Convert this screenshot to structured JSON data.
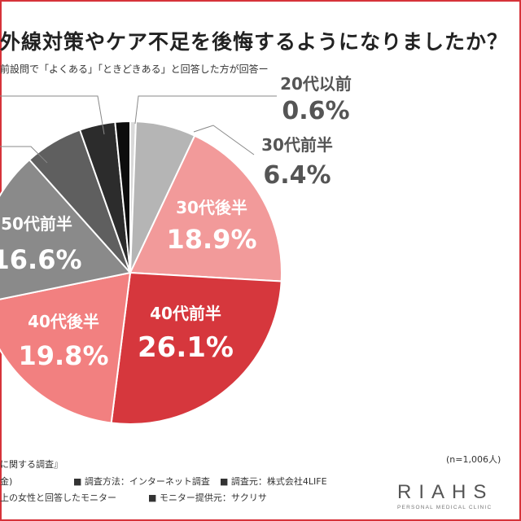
{
  "header": {
    "title": "外線対策やケア不足を後悔するようになりましたか？",
    "subtitle": "前設問で「よくある」「ときどきある」と回答した方が回答ー"
  },
  "chart_data": {
    "type": "pie",
    "slices": [
      {
        "label": "20代以前",
        "value": 0.6,
        "display": "0.6%",
        "color": "#d9d9d9"
      },
      {
        "label": "30代前半",
        "value": 6.4,
        "display": "6.4%",
        "color": "#b5b5b5"
      },
      {
        "label": "30代後半",
        "value": 18.9,
        "display": "18.9%",
        "color": "#f29a9a"
      },
      {
        "label": "40代前半",
        "value": 26.1,
        "display": "26.1%",
        "color": "#d6373d"
      },
      {
        "label": "40代後半",
        "value": 19.8,
        "display": "19.8%",
        "color": "#f28080"
      },
      {
        "label": "50代前半",
        "value": 16.6,
        "display": "16.6%",
        "color": "#8a8a8a"
      },
      {
        "label": "",
        "value": 6.2,
        "display": "",
        "color": "#5f5f5f"
      },
      {
        "label": "",
        "value": 3.8,
        "display": "",
        "color": "#2c2c2c"
      },
      {
        "label": "",
        "value": 1.6,
        "display": "",
        "color": "#0d0d0d"
      }
    ]
  },
  "footer": {
    "sample_size": "(n=1,006人)",
    "line1": "に関する調査』",
    "line2": "金)",
    "method": "■ 調査方法：インターネット調査",
    "source": "■ 調査元：株式会社4LIFE",
    "line3": "上の女性と回答したモニター",
    "provider": "■ モニター提供元：サクリサ",
    "brand": "RIAHS",
    "brand_tagline": "PERSONAL MEDICAL CLINIC"
  }
}
